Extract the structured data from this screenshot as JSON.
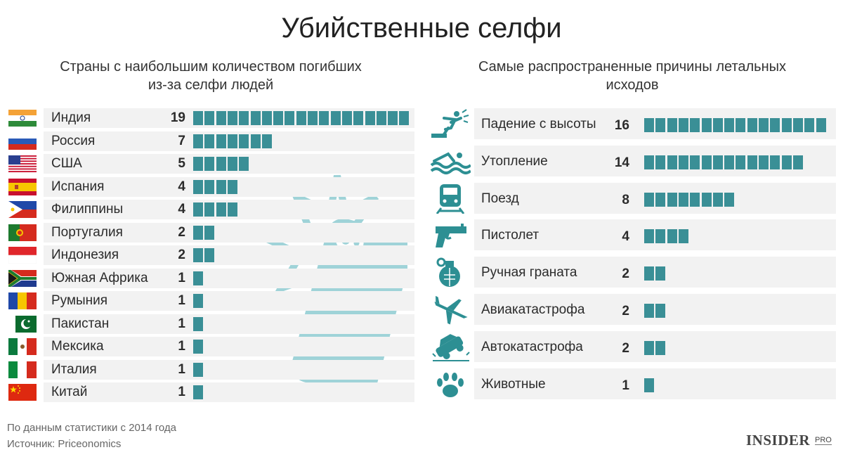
{
  "title": "Убийственные селфи",
  "subtitle_left": "Страны с наибольшим количеством погибших из-за селфи людей",
  "subtitle_right": "Самые распространенные причины летальных исходов",
  "footnote_1": "По данным статистики с 2014 года",
  "footnote_2": "Источник: Priceonomics",
  "brand": "INSIDER",
  "brand_suffix": "PRO",
  "colors": {
    "bar": "#3a8f96",
    "row_bg": "#f2f2f2",
    "icon": "#2d8f93",
    "phone": "#9fd3d8"
  },
  "chart_data": [
    {
      "type": "bar",
      "title": "Страны с наибольшим количеством погибших из-за селфи людей",
      "categories": [
        "Индия",
        "Россия",
        "США",
        "Испания",
        "Филиппины",
        "Португалия",
        "Индонезия",
        "Южная Африка",
        "Румыния",
        "Пакистан",
        "Мексика",
        "Италия",
        "Китай"
      ],
      "values": [
        19,
        7,
        5,
        4,
        4,
        2,
        2,
        1,
        1,
        1,
        1,
        1,
        1
      ],
      "flag_icons": [
        "india-flag-icon",
        "russia-flag-icon",
        "usa-flag-icon",
        "spain-flag-icon",
        "philippines-flag-icon",
        "portugal-flag-icon",
        "indonesia-flag-icon",
        "south-africa-flag-icon",
        "romania-flag-icon",
        "pakistan-flag-icon",
        "mexico-flag-icon",
        "italy-flag-icon",
        "china-flag-icon"
      ]
    },
    {
      "type": "bar",
      "title": "Самые распространенные причины летальных исходов",
      "categories": [
        "Падение с высоты",
        "Утопление",
        "Поезд",
        "Пистолет",
        "Ручная граната",
        "Авиакатастрофа",
        "Автокатастрофа",
        "Животные"
      ],
      "values": [
        16,
        14,
        8,
        4,
        2,
        2,
        2,
        1
      ],
      "icons": [
        "falling-person-icon",
        "swimmer-icon",
        "train-icon",
        "pistol-icon",
        "hand-grenade-icon",
        "airplane-crash-icon",
        "car-crash-icon",
        "animal-paw-icon"
      ]
    }
  ]
}
